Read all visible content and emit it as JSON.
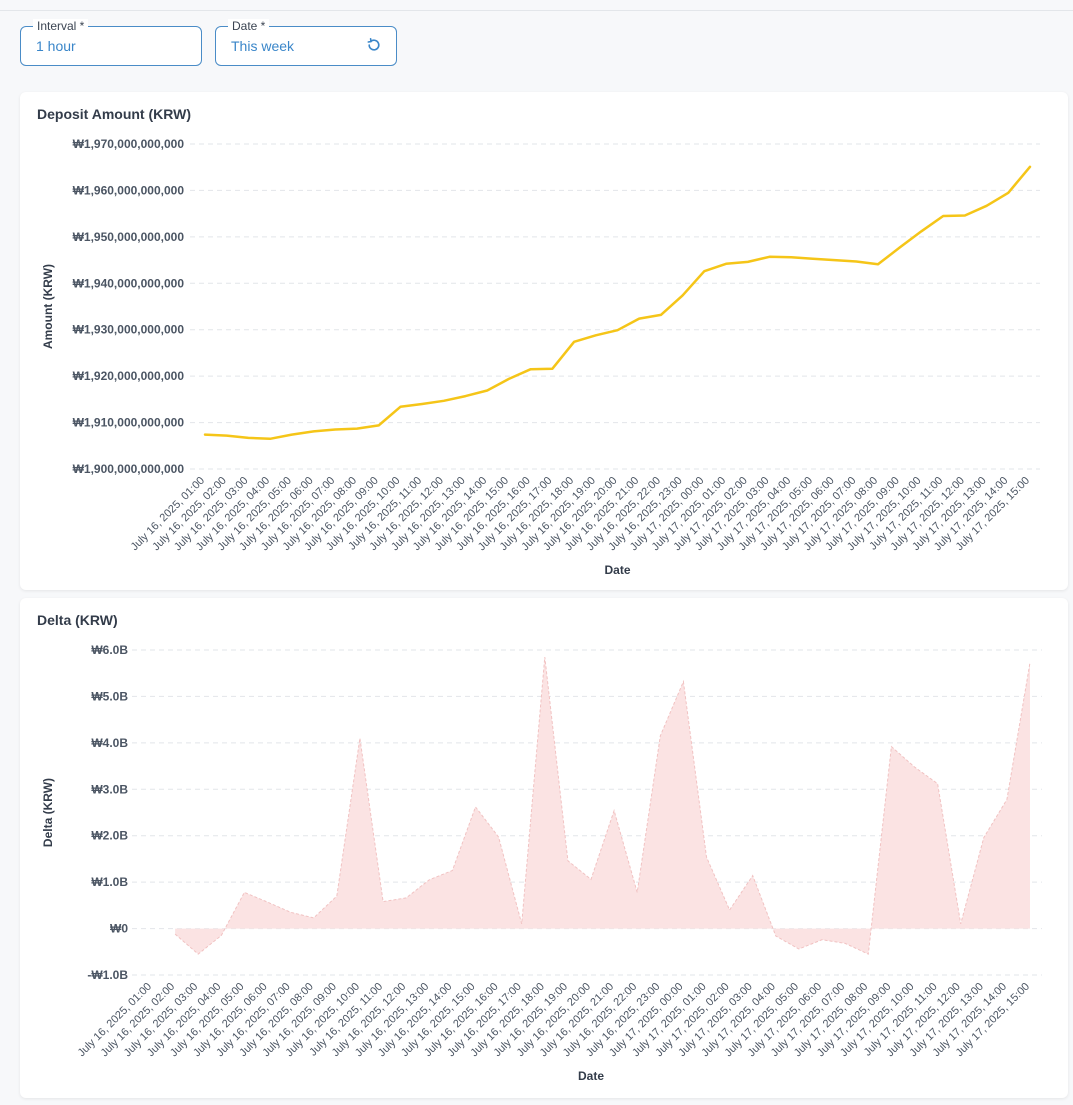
{
  "filters": {
    "interval": {
      "label": "Interval *",
      "value": "1 hour"
    },
    "date": {
      "label": "Date *",
      "value": "This week",
      "reset_icon": "reset-icon"
    }
  },
  "colors": {
    "accent": "#4a8cc7",
    "line": "#f5c518",
    "area_fill": "#fbe3e3",
    "area_stroke": "#f1c2c2"
  },
  "chart_data": [
    {
      "type": "line",
      "title": "Deposit Amount (KRW)",
      "xlabel": "Date",
      "ylabel": "Amount (KRW)",
      "ylim": [
        1900000000000,
        1970000000000
      ],
      "yticks": [
        1900000000000,
        1910000000000,
        1920000000000,
        1930000000000,
        1940000000000,
        1950000000000,
        1960000000000,
        1970000000000
      ],
      "ytick_labels": [
        "₩1,900,000,000,000",
        "₩1,910,000,000,000",
        "₩1,920,000,000,000",
        "₩1,930,000,000,000",
        "₩1,940,000,000,000",
        "₩1,950,000,000,000",
        "₩1,960,000,000,000",
        "₩1,970,000,000,000"
      ],
      "categories": [
        "July 16, 2025, 01:00",
        "July 16, 2025, 02:00",
        "July 16, 2025, 03:00",
        "July 16, 2025, 04:00",
        "July 16, 2025, 05:00",
        "July 16, 2025, 06:00",
        "July 16, 2025, 07:00",
        "July 16, 2025, 08:00",
        "July 16, 2025, 09:00",
        "July 16, 2025, 10:00",
        "July 16, 2025, 11:00",
        "July 16, 2025, 12:00",
        "July 16, 2025, 13:00",
        "July 16, 2025, 14:00",
        "July 16, 2025, 15:00",
        "July 16, 2025, 16:00",
        "July 16, 2025, 17:00",
        "July 16, 2025, 18:00",
        "July 16, 2025, 19:00",
        "July 16, 2025, 20:00",
        "July 16, 2025, 21:00",
        "July 16, 2025, 22:00",
        "July 16, 2025, 23:00",
        "July 17, 2025, 00:00",
        "July 17, 2025, 01:00",
        "July 17, 2025, 02:00",
        "July 17, 2025, 03:00",
        "July 17, 2025, 04:00",
        "July 17, 2025, 05:00",
        "July 17, 2025, 06:00",
        "July 17, 2025, 07:00",
        "July 17, 2025, 08:00",
        "July 17, 2025, 09:00",
        "July 17, 2025, 10:00",
        "July 17, 2025, 11:00",
        "July 17, 2025, 12:00",
        "July 17, 2025, 13:00",
        "July 17, 2025, 14:00",
        "July 17, 2025, 15:00"
      ],
      "values": [
        1907400000000,
        1907200000000,
        1906700000000,
        1906500000000,
        1907400000000,
        1908100000000,
        1908500000000,
        1908700000000,
        1909400000000,
        1913400000000,
        1914000000000,
        1914700000000,
        1915700000000,
        1916900000000,
        1919400000000,
        1921500000000,
        1921600000000,
        1927400000000,
        1928800000000,
        1929900000000,
        1932400000000,
        1933200000000,
        1937400000000,
        1942600000000,
        1944200000000,
        1944600000000,
        1945700000000,
        1945600000000,
        1945300000000,
        1945000000000,
        1944700000000,
        1944100000000,
        1947700000000,
        1951200000000,
        1954500000000,
        1954600000000,
        1956700000000,
        1959500000000,
        1965100000000
      ],
      "grid": true
    },
    {
      "type": "area",
      "title": "Delta (KRW)",
      "xlabel": "Date",
      "ylabel": "Delta (KRW)",
      "ylim": [
        -1000000000,
        6000000000
      ],
      "yticks": [
        -1000000000,
        0,
        1000000000,
        2000000000,
        3000000000,
        4000000000,
        5000000000,
        6000000000
      ],
      "ytick_labels": [
        "-₩1.0B",
        "₩0",
        "₩1.0B",
        "₩2.0B",
        "₩3.0B",
        "₩4.0B",
        "₩5.0B",
        "₩6.0B"
      ],
      "categories": [
        "July 16, 2025, 01:00",
        "July 16, 2025, 02:00",
        "July 16, 2025, 03:00",
        "July 16, 2025, 04:00",
        "July 16, 2025, 05:00",
        "July 16, 2025, 06:00",
        "July 16, 2025, 07:00",
        "July 16, 2025, 08:00",
        "July 16, 2025, 09:00",
        "July 16, 2025, 10:00",
        "July 16, 2025, 11:00",
        "July 16, 2025, 12:00",
        "July 16, 2025, 13:00",
        "July 16, 2025, 14:00",
        "July 16, 2025, 15:00",
        "July 16, 2025, 16:00",
        "July 16, 2025, 17:00",
        "July 16, 2025, 18:00",
        "July 16, 2025, 19:00",
        "July 16, 2025, 20:00",
        "July 16, 2025, 21:00",
        "July 16, 2025, 22:00",
        "July 16, 2025, 23:00",
        "July 17, 2025, 00:00",
        "July 17, 2025, 01:00",
        "July 17, 2025, 02:00",
        "July 17, 2025, 03:00",
        "July 17, 2025, 04:00",
        "July 17, 2025, 05:00",
        "July 17, 2025, 06:00",
        "July 17, 2025, 07:00",
        "July 17, 2025, 08:00",
        "July 17, 2025, 09:00",
        "July 17, 2025, 10:00",
        "July 17, 2025, 11:00",
        "July 17, 2025, 12:00",
        "July 17, 2025, 13:00",
        "July 17, 2025, 14:00",
        "July 17, 2025, 15:00"
      ],
      "values": [
        null,
        -120000000,
        -550000000,
        -150000000,
        780000000,
        570000000,
        350000000,
        230000000,
        700000000,
        4100000000,
        580000000,
        660000000,
        1050000000,
        1250000000,
        2620000000,
        1970000000,
        100000000,
        5850000000,
        1460000000,
        1060000000,
        2540000000,
        780000000,
        4150000000,
        5320000000,
        1540000000,
        400000000,
        1140000000,
        -160000000,
        -440000000,
        -240000000,
        -320000000,
        -550000000,
        3920000000,
        3480000000,
        3120000000,
        100000000,
        1960000000,
        2780000000,
        5730000000
      ],
      "grid": true
    }
  ]
}
